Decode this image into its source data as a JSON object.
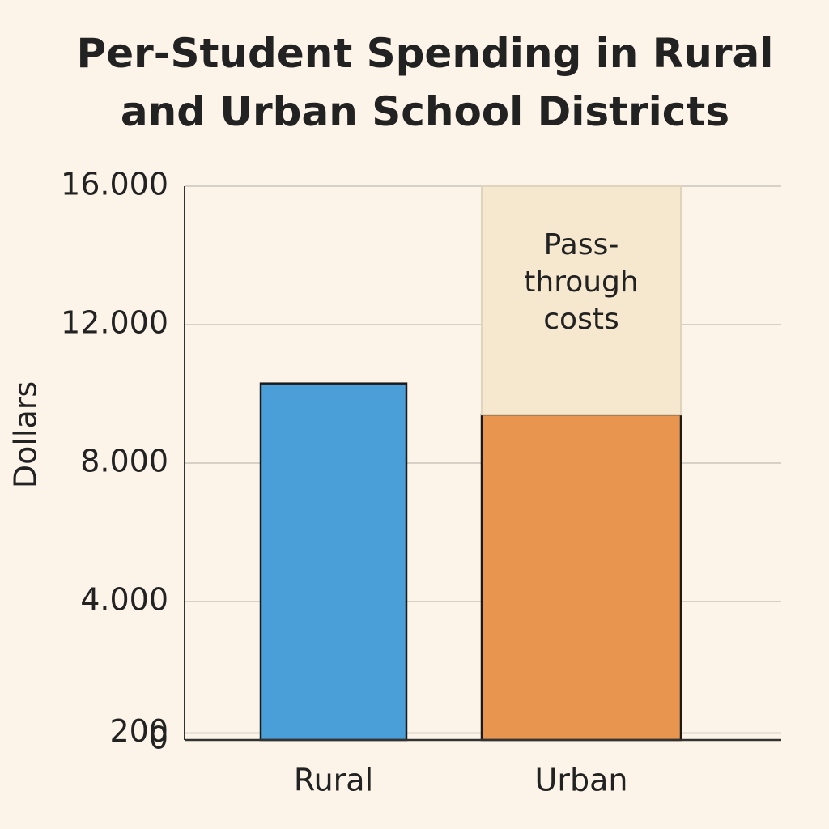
{
  "chart_data": {
    "type": "stacked_bar",
    "title": "Per-Student Spending in Rural and Urban School Districts",
    "y_label": "Dollars",
    "categories": [
      "Rural",
      "Urban"
    ],
    "series": [
      {
        "colors": [
          "#4a9fd8",
          "#e8964f"
        ],
        "values": [
          10300,
          9400
        ]
      },
      {
        "name": "Pass-through costs",
        "color": "#f6e8cf",
        "values": [
          null,
          6600
        ]
      }
    ],
    "ylim": [
      0,
      16000
    ],
    "yticks": [
      0,
      200,
      {
        "value": 4000,
        "label": "4.000"
      },
      {
        "value": 8000,
        "label": "8.000"
      },
      {
        "value": 12000,
        "label": "12.000"
      },
      {
        "value": 16000,
        "label": "16.000"
      }
    ],
    "grid": true
  }
}
